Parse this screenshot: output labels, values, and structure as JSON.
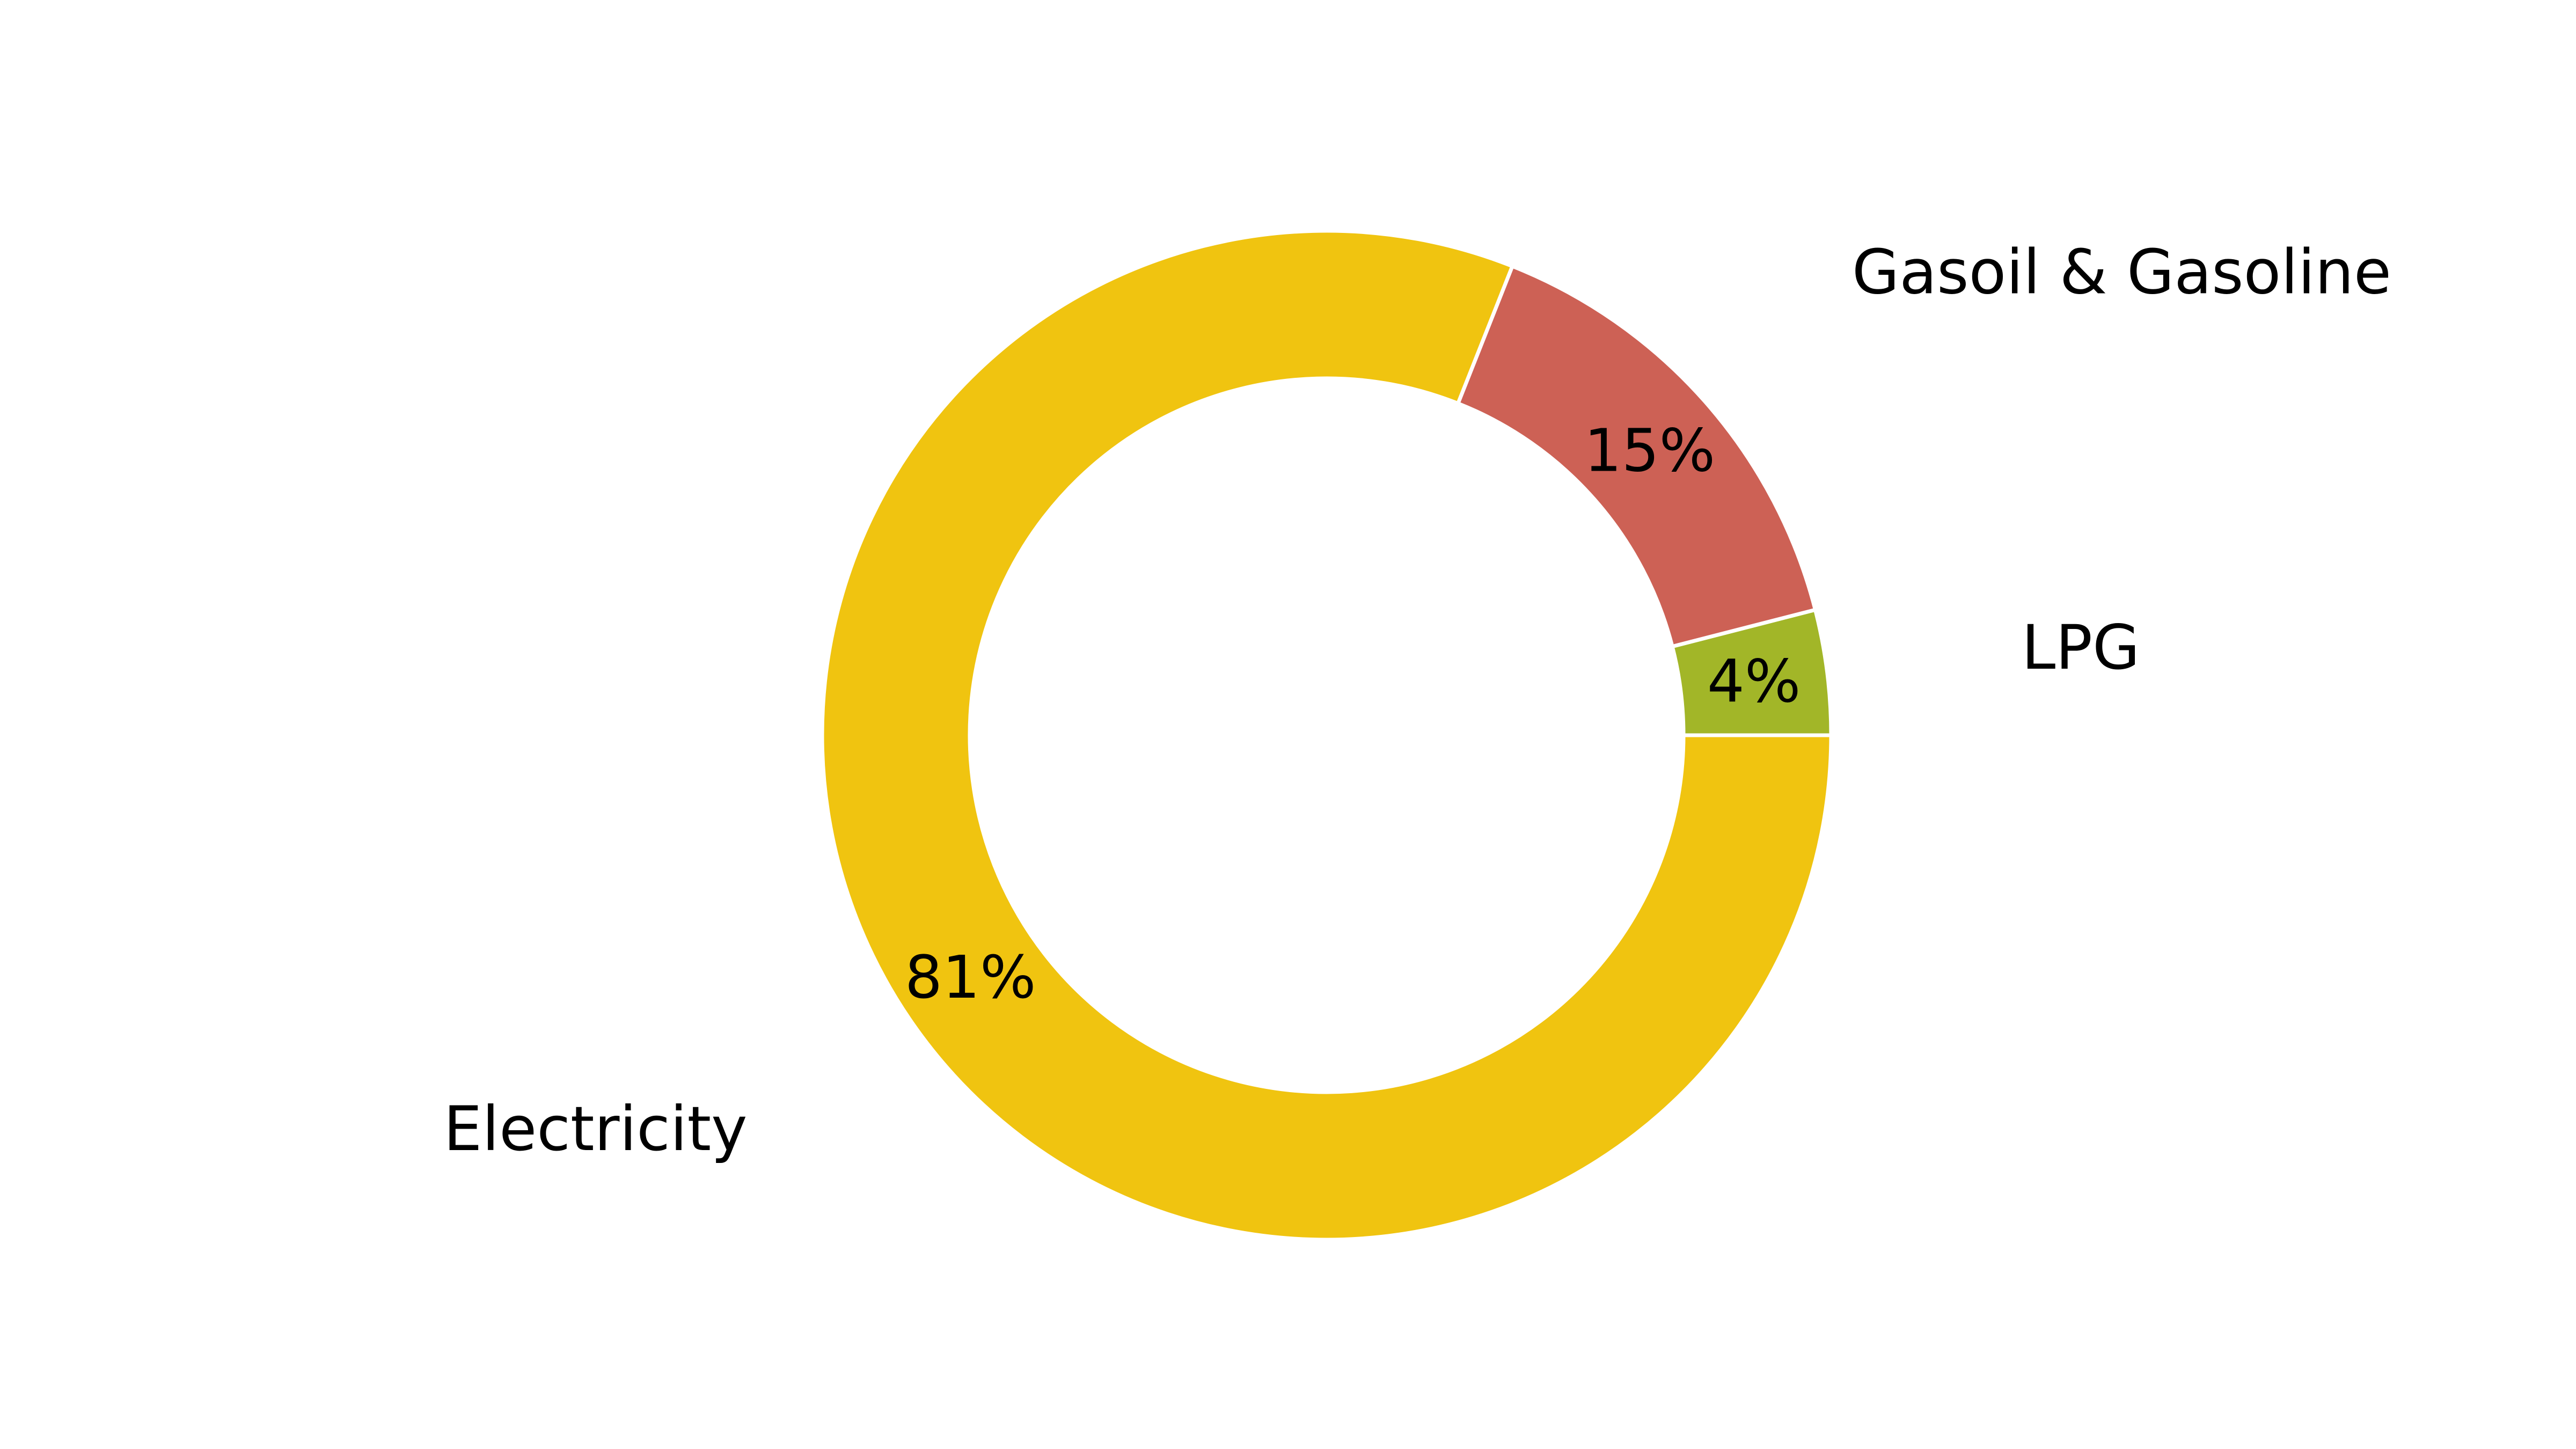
{
  "chart_data": {
    "type": "pie",
    "variant": "donut",
    "title": "",
    "categories": [
      "LPG",
      "Gasoil & Gasoline",
      "Electricity"
    ],
    "values": [
      4,
      15,
      81
    ],
    "value_labels": [
      "4%",
      "15%",
      "81%"
    ],
    "units": "%",
    "colors": [
      "#a2b628",
      "#cd6155",
      "#f0c410"
    ],
    "slice_border_color": "#ffffff",
    "start_angle_deg": 0,
    "direction": "counterclockwise",
    "legend": "none"
  }
}
